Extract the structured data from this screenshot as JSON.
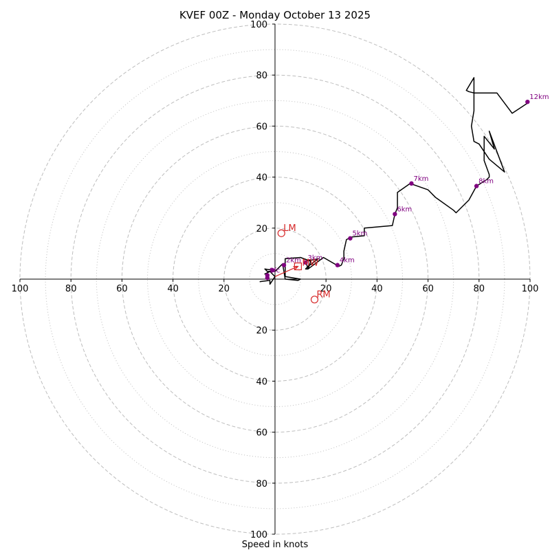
{
  "chart_data": {
    "type": "hodograph",
    "title": "KVEF 00Z - Monday October 13 2025",
    "xlabel": "Speed in knots",
    "ring_max": 100,
    "rings_major": [
      20,
      40,
      60,
      80,
      100
    ],
    "rings_minor": [
      10,
      30,
      50,
      70,
      90
    ],
    "x_ticks": [
      "100",
      "80",
      "60",
      "40",
      "20",
      "20",
      "40",
      "60",
      "80",
      "100"
    ],
    "x_tick_values": [
      -100,
      -80,
      -60,
      -40,
      -20,
      20,
      40,
      60,
      80,
      100
    ],
    "y_ticks": [
      "100",
      "80",
      "60",
      "40",
      "20",
      "20",
      "40",
      "60",
      "80",
      "100"
    ],
    "y_tick_values": [
      100,
      80,
      60,
      40,
      20,
      -20,
      -40,
      -60,
      -80,
      -100
    ],
    "trace": [
      [
        -6,
        -1
      ],
      [
        -2,
        -0.5
      ],
      [
        -2,
        -2
      ],
      [
        0,
        1
      ],
      [
        -2,
        3
      ],
      [
        -4,
        2
      ],
      [
        -1,
        3.5
      ],
      [
        -4,
        4
      ],
      [
        -3,
        3
      ],
      [
        0,
        3
      ],
      [
        3,
        6
      ],
      [
        4,
        0
      ],
      [
        9,
        -0.5
      ],
      [
        10,
        0
      ],
      [
        4,
        1
      ],
      [
        4,
        8
      ],
      [
        10,
        8.5
      ],
      [
        14,
        7
      ],
      [
        13,
        4
      ],
      [
        12,
        4
      ],
      [
        13,
        5
      ],
      [
        17,
        8
      ],
      [
        12,
        7
      ],
      [
        13,
        4
      ],
      [
        19,
        8.5
      ],
      [
        25,
        5
      ],
      [
        26,
        5.5
      ],
      [
        27,
        8
      ],
      [
        27,
        11
      ],
      [
        28,
        15.5
      ],
      [
        30,
        16.5
      ],
      [
        35,
        17
      ],
      [
        35,
        20
      ],
      [
        46,
        21
      ],
      [
        47,
        25.5
      ],
      [
        48,
        28
      ],
      [
        48,
        34
      ],
      [
        53,
        37.5
      ],
      [
        60,
        35
      ],
      [
        63,
        32
      ],
      [
        70,
        27
      ],
      [
        71,
        26
      ],
      [
        76,
        31
      ],
      [
        79,
        36.5
      ],
      [
        83,
        39
      ],
      [
        84,
        40
      ],
      [
        84,
        41
      ],
      [
        82,
        46.5
      ],
      [
        82,
        56
      ],
      [
        86,
        51
      ],
      [
        84,
        58
      ],
      [
        90,
        42
      ],
      [
        84,
        47
      ],
      [
        80,
        53
      ],
      [
        78,
        54
      ],
      [
        77,
        60
      ],
      [
        78,
        66
      ],
      [
        78,
        79
      ],
      [
        75,
        74
      ],
      [
        76,
        73.5
      ],
      [
        78,
        73
      ],
      [
        87,
        73
      ],
      [
        93,
        65
      ],
      [
        99,
        69
      ]
    ],
    "height_markers": [
      {
        "label": "Sfc",
        "u": -3,
        "v": 1.5
      },
      {
        "label": "2km",
        "u": 3.5,
        "v": 5.5
      },
      {
        "label": "3km",
        "u": 12,
        "v": 6.5
      },
      {
        "label": "4km",
        "u": 24.5,
        "v": 5.5
      },
      {
        "label": "5km",
        "u": 29.5,
        "v": 16
      },
      {
        "label": "6km",
        "u": 47,
        "v": 25.5
      },
      {
        "label": "7km",
        "u": 53.5,
        "v": 37.5
      },
      {
        "label": "8km",
        "u": 79,
        "v": 36.5
      },
      {
        "label": "12km",
        "u": 99,
        "v": 69.5
      }
    ],
    "extra_points": [
      {
        "u": -1,
        "v": 3.5
      },
      {
        "u": -3,
        "v": 0.5
      }
    ],
    "storm_motion": {
      "lm": {
        "label": "LM",
        "u": 2.5,
        "v": 18
      },
      "rm": {
        "label": "RM",
        "u": 15.5,
        "v": -8
      },
      "mw": {
        "label": "MW",
        "u": 9,
        "v": 5
      },
      "shear_vector": {
        "from_u": 0,
        "from_v": 1,
        "to_u": 9,
        "to_v": 5
      }
    },
    "colors": {
      "trace": "#000000",
      "marker": "#800080",
      "storm": "#d62728",
      "grid": "#bdbdbd",
      "axes": "#000000"
    }
  }
}
